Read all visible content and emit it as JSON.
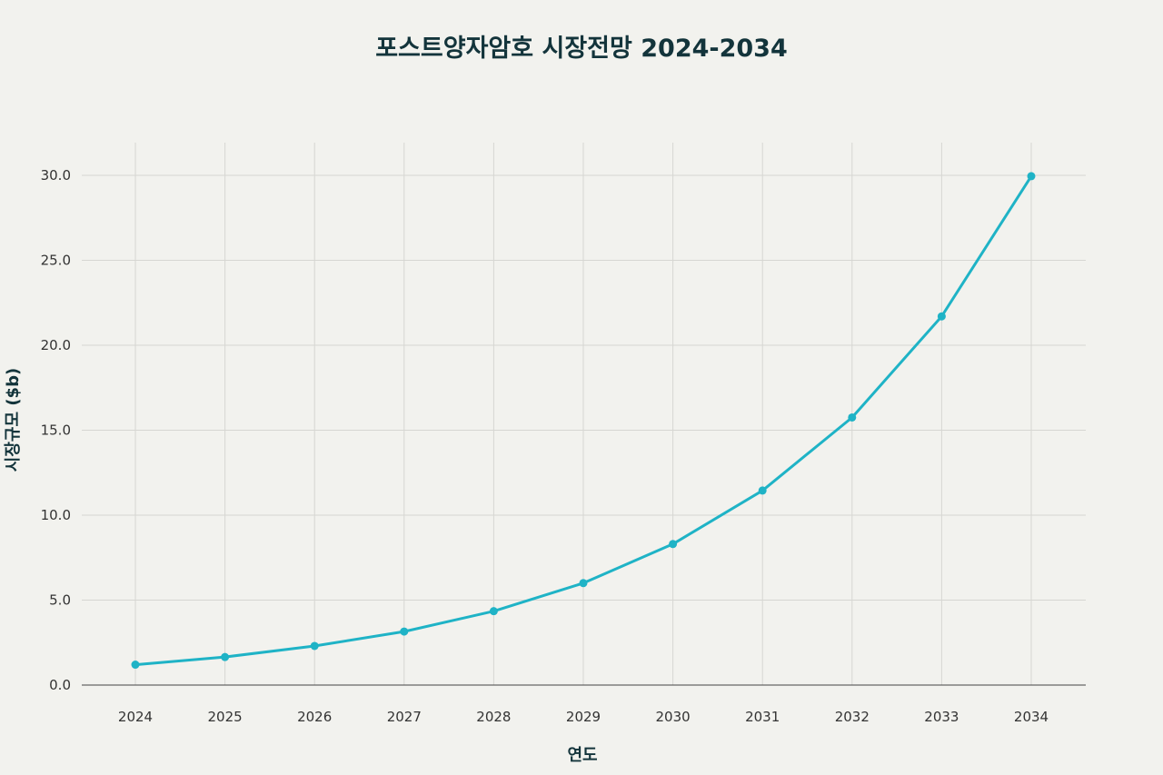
{
  "chart_data": {
    "type": "line",
    "title": "포스트양자암호 시장전망 2024-2034",
    "xlabel": "연도",
    "ylabel": "시장규모 ($b)",
    "x": [
      "2024",
      "2025",
      "2026",
      "2027",
      "2028",
      "2029",
      "2030",
      "2031",
      "2032",
      "2033",
      "2034"
    ],
    "series": [
      {
        "values": [
          1.2,
          1.65,
          2.3,
          3.15,
          4.35,
          6.0,
          8.3,
          11.45,
          15.75,
          21.7,
          29.95
        ]
      }
    ],
    "ylim": [
      0,
      32
    ],
    "yticks": [
      "0.0",
      "5.0",
      "10.0",
      "15.0",
      "20.0",
      "25.0",
      "30.0"
    ],
    "grid": true,
    "colors": {
      "line": "#1fb3c6",
      "grid": "#d6d6d2",
      "axis": "#444444",
      "background": "#f2f2ee"
    }
  }
}
